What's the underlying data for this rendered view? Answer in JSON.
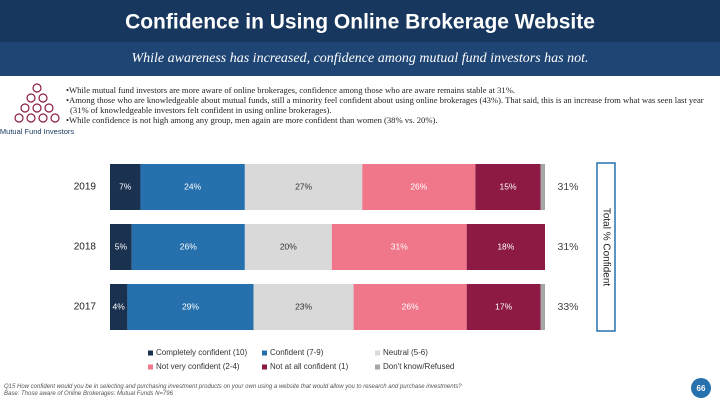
{
  "header": {
    "title": "Confidence in Using Online Brokerage Website",
    "subtitle": "While awareness has increased, confidence among mutual fund investors has not.",
    "icon_label": "Mutual Fund Investors",
    "bullets": [
      "While mutual fund investors are more aware of online brokerages, confidence among those who are aware remains stable at 31%.",
      "Among those who are knowledgeable about mutual funds, still a minority feel confident about using online brokerages (43%).  That said, this is an increase from what was seen last year (31% of knowledgeable investors felt confident in using online brokerages).",
      "While confidence is not high among any group, men again are more confident than women (38% vs. 20%)."
    ],
    "footnote": [
      "Q15 How confident would you be in selecting and purchasing investment products on your own using a website that would allow you to research and purchase investments?",
      "Base: Those aware of Online Brokerages: Mutual Funds N=796"
    ],
    "page_number": "66"
  },
  "chart_data": {
    "type": "bar",
    "orientation": "horizontal",
    "stacked": true,
    "categories": [
      "2019",
      "2018",
      "2017"
    ],
    "xlim": [
      0,
      100
    ],
    "series": [
      {
        "name": "Completely confident (10)",
        "color": "#1b3150",
        "values": [
          7,
          5,
          4
        ],
        "value_labels": [
          "7%",
          "5%",
          "4%"
        ]
      },
      {
        "name": "Confident (7-9)",
        "color": "#2670ad",
        "values": [
          24,
          26,
          29
        ],
        "value_labels": [
          "24%",
          "26%",
          "29%"
        ]
      },
      {
        "name": "Neutral (5-6)",
        "color": "#d9d9d9",
        "values": [
          27,
          20,
          23
        ],
        "value_labels": [
          "27%",
          "20%",
          "23%"
        ]
      },
      {
        "name": "Not very confident (2-4)",
        "color": "#f0768a",
        "values": [
          26,
          31,
          26
        ],
        "value_labels": [
          "26%",
          "31%",
          "26%"
        ]
      },
      {
        "name": "Not at all confident (1)",
        "color": "#8c1a44",
        "values": [
          15,
          18,
          17
        ],
        "value_labels": [
          "15%",
          "18%",
          "17%"
        ]
      },
      {
        "name": "Don't know/Refused",
        "color": "#a6a6a6",
        "values": [
          1,
          0,
          1
        ]
      }
    ],
    "total": {
      "label": "Total % Confident",
      "values": [
        31,
        31,
        33
      ],
      "value_labels": [
        "31%",
        "31%",
        "33%"
      ]
    }
  }
}
